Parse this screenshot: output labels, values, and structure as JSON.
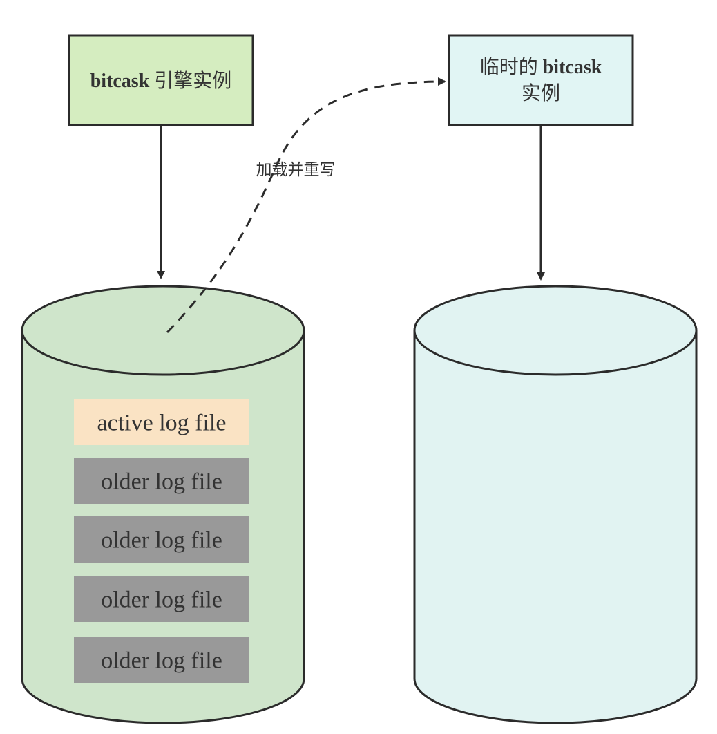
{
  "diagram": {
    "left_box": {
      "title_bold": "bitcask",
      "title_rest": " 引擎实例",
      "fill": "#d5edc0"
    },
    "right_box": {
      "title_line1_rest": "临时的 ",
      "title_line1_bold": "bitcask",
      "title_line2": "实例",
      "fill": "#e1f5f4"
    },
    "edge_label": "加载并重写",
    "left_cylinder": {
      "fill": "#cfe5cb",
      "files": [
        {
          "label": "active log file",
          "kind": "active"
        },
        {
          "label": "older log file",
          "kind": "older"
        },
        {
          "label": "older log file",
          "kind": "older"
        },
        {
          "label": "older log file",
          "kind": "older"
        },
        {
          "label": "older log file",
          "kind": "older"
        }
      ]
    },
    "right_cylinder": {
      "fill": "#e1f3f2"
    },
    "colors": {
      "stroke": "#2b2b2b",
      "active_file": "#fae3c4",
      "older_file": "#999999",
      "text": "#333333"
    }
  }
}
